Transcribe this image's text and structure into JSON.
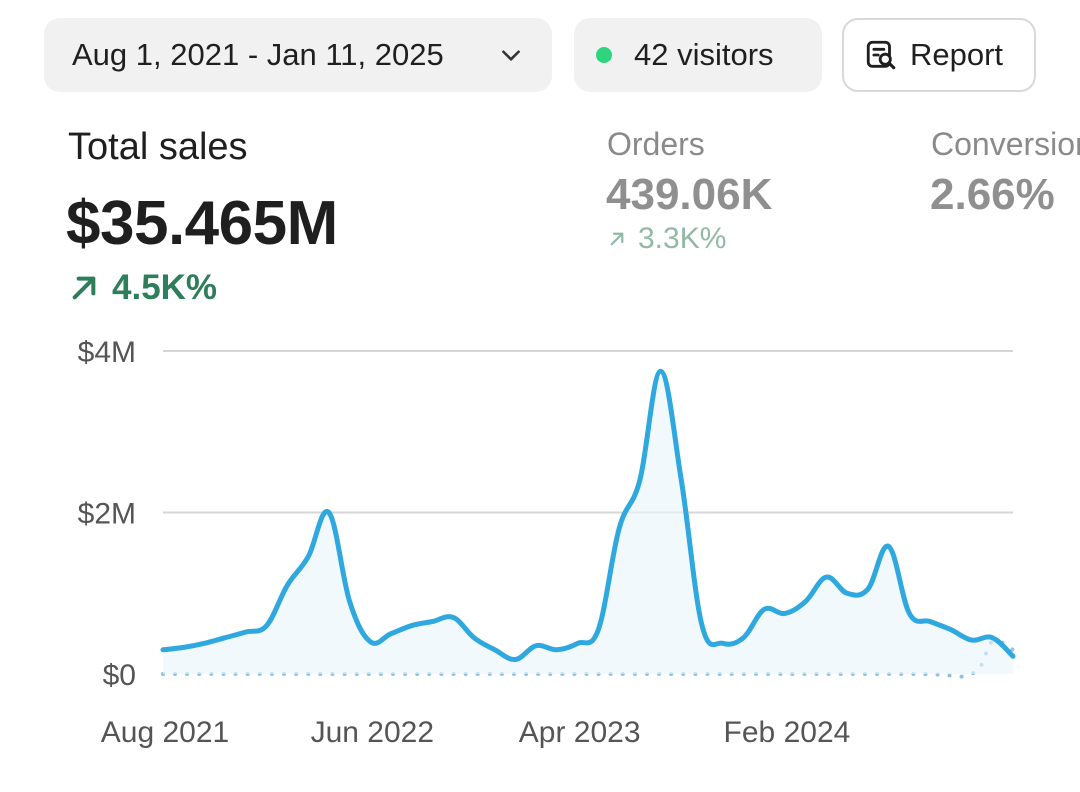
{
  "toolbar": {
    "date_range": "Aug 1, 2021 - Jan 11, 2025",
    "visitors": "42 visitors",
    "report_label": "Report"
  },
  "metrics": {
    "total_sales": {
      "label": "Total sales",
      "value": "$35.465M",
      "change": "4.5K%"
    },
    "orders": {
      "label": "Orders",
      "value": "439.06K",
      "change": "3.3K%"
    },
    "conversion": {
      "label": "Conversion",
      "value": "2.66%"
    }
  },
  "colors": {
    "line": "#2fa8e0",
    "trend_up": "#2e7d5b",
    "live_dot": "#2fd47e"
  },
  "chart_data": {
    "type": "line",
    "title": "",
    "xlabel": "",
    "ylabel": "",
    "ylim": [
      0,
      4
    ],
    "y_unit": "M",
    "y_ticks": [
      {
        "value": 0,
        "label": "$0"
      },
      {
        "value": 2,
        "label": "$2M"
      },
      {
        "value": 4,
        "label": "$4M"
      }
    ],
    "x_range": [
      "2021-08",
      "2025-01"
    ],
    "x_ticks": [
      {
        "date": "2021-08",
        "label": "Aug 2021"
      },
      {
        "date": "2022-06",
        "label": "Jun 2022"
      },
      {
        "date": "2023-04",
        "label": "Apr 2023"
      },
      {
        "date": "2024-02",
        "label": "Feb 2024"
      }
    ],
    "grid": true,
    "series": [
      {
        "style": "solid",
        "points": [
          [
            "2021-08",
            0.3
          ],
          [
            "2021-09",
            0.33
          ],
          [
            "2021-10",
            0.38
          ],
          [
            "2021-11",
            0.45
          ],
          [
            "2021-12",
            0.52
          ],
          [
            "2022-01",
            0.6
          ],
          [
            "2022-02",
            1.1
          ],
          [
            "2022-03",
            1.45
          ],
          [
            "2022-04",
            2.0
          ],
          [
            "2022-05",
            0.9
          ],
          [
            "2022-06",
            0.4
          ],
          [
            "2022-07",
            0.5
          ],
          [
            "2022-08",
            0.6
          ],
          [
            "2022-09",
            0.65
          ],
          [
            "2022-10",
            0.7
          ],
          [
            "2022-11",
            0.45
          ],
          [
            "2022-12",
            0.3
          ],
          [
            "2023-01",
            0.18
          ],
          [
            "2023-02",
            0.35
          ],
          [
            "2023-03",
            0.3
          ],
          [
            "2023-04",
            0.38
          ],
          [
            "2023-05",
            0.55
          ],
          [
            "2023-06",
            1.8
          ],
          [
            "2023-07",
            2.4
          ],
          [
            "2023-08",
            3.75
          ],
          [
            "2023-09",
            2.4
          ],
          [
            "2023-10",
            0.6
          ],
          [
            "2023-11",
            0.38
          ],
          [
            "2023-12",
            0.45
          ],
          [
            "2024-01",
            0.8
          ],
          [
            "2024-02",
            0.75
          ],
          [
            "2024-03",
            0.9
          ],
          [
            "2024-04",
            1.2
          ],
          [
            "2024-05",
            1.0
          ],
          [
            "2024-06",
            1.05
          ],
          [
            "2024-07",
            1.58
          ],
          [
            "2024-08",
            0.75
          ],
          [
            "2024-09",
            0.65
          ],
          [
            "2024-10",
            0.55
          ],
          [
            "2024-11",
            0.42
          ],
          [
            "2024-12",
            0.45
          ],
          [
            "2025-01",
            0.22
          ]
        ]
      },
      {
        "style": "dotted",
        "points": [
          [
            "2021-08",
            0
          ],
          [
            "2022-08",
            0
          ],
          [
            "2023-08",
            0
          ],
          [
            "2024-08",
            0
          ],
          [
            "2024-11",
            0
          ],
          [
            "2024-12",
            0.4
          ],
          [
            "2025-01",
            0.3
          ]
        ]
      }
    ]
  }
}
